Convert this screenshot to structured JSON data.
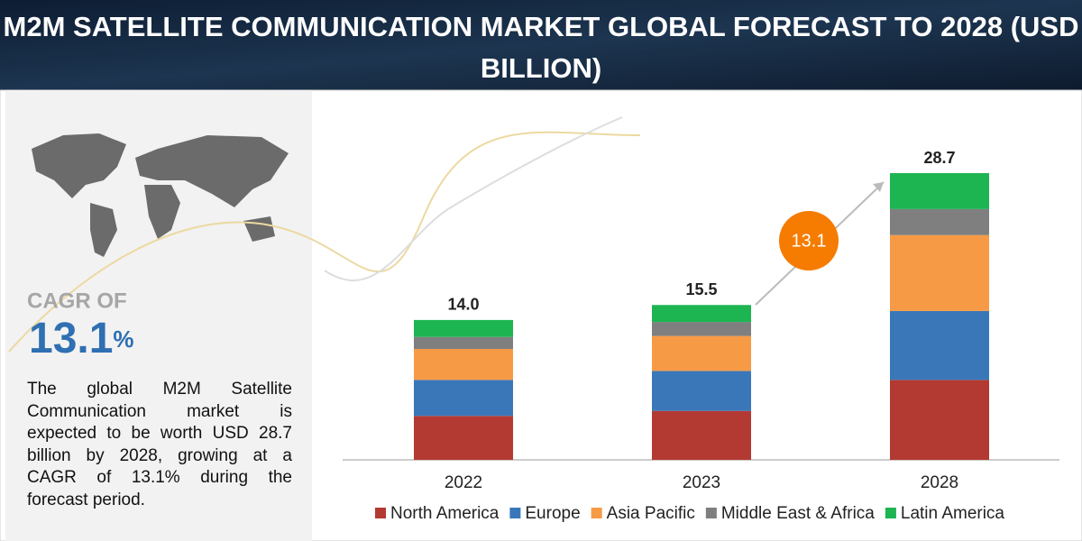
{
  "chart_data": {
    "type": "stacked_bar",
    "title": "M2M SATELLITE COMMUNICATION MARKET GLOBAL FORECAST TO 2028 (USD BILLION)",
    "categories": [
      "2022",
      "2023",
      "2028"
    ],
    "series": [
      {
        "name": "North America",
        "color": "#b33a32",
        "values": [
          4.4,
          4.9,
          8.0
        ]
      },
      {
        "name": "Europe",
        "color": "#3a77b9",
        "values": [
          3.6,
          4.0,
          6.9
        ]
      },
      {
        "name": "Asia Pacific",
        "color": "#f79a46",
        "values": [
          3.1,
          3.5,
          7.6
        ]
      },
      {
        "name": "Middle East & Africa",
        "color": "#7f7f7f",
        "values": [
          1.2,
          1.4,
          2.6
        ]
      },
      {
        "name": "Latin America",
        "color": "#1cb552",
        "values": [
          1.7,
          1.7,
          3.6
        ]
      }
    ],
    "totals": {
      "values": [
        14.0,
        15.5,
        28.7
      ],
      "value_labels": [
        "14.0",
        "15.5",
        "28.7"
      ]
    },
    "cagr_heading": "CAGR OF",
    "cagr": 13.1,
    "cagr_suffix": "%",
    "description": "The global M2M Satellite Communication market is expected to be worth USD 28.7 billion by 2028, growing at a CAGR of 13.1% during the forecast period."
  }
}
